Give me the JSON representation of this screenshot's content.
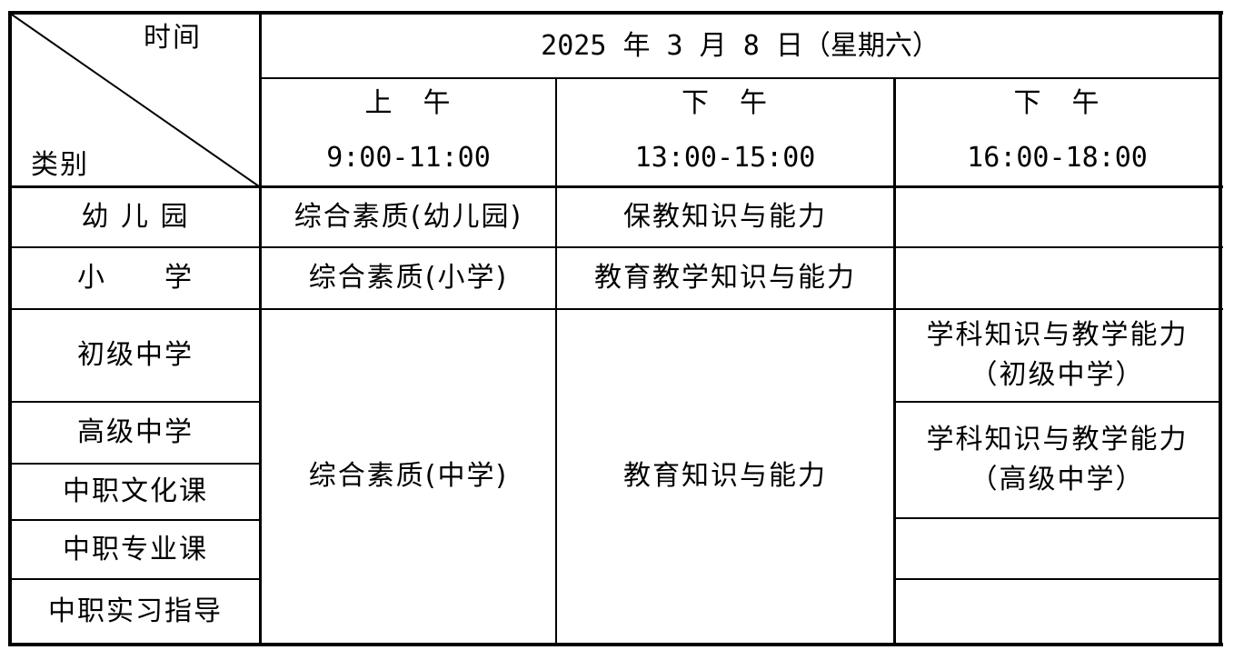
{
  "header": {
    "corner_time": "时间",
    "corner_category": "类别",
    "date": "2025 年 3 月 8 日（星期六）",
    "sessions": [
      {
        "label": "上　午",
        "time": "9:00-11:00"
      },
      {
        "label": "下　午",
        "time": "13:00-15:00"
      },
      {
        "label": "下　午",
        "time": "16:00-18:00"
      }
    ]
  },
  "rows": {
    "kindergarten": {
      "category": "幼 儿 园",
      "morning": "综合素质(幼儿园)",
      "afternoon": "保教知识与能力"
    },
    "primary": {
      "category": "小　　学",
      "morning": "综合素质(小学)",
      "afternoon": "教育教学知识与能力"
    },
    "junior": {
      "category": "初级中学",
      "evening": "学科知识与教学能力\n（初级中学）"
    },
    "senior": {
      "category": "高级中学",
      "evening": "学科知识与教学能力\n（高级中学）"
    },
    "voc_culture": {
      "category": "中职文化课"
    },
    "voc_major": {
      "category": "中职专业课"
    },
    "voc_intern": {
      "category": "中职实习指导"
    },
    "secondary_morning": "综合素质(中学)",
    "secondary_afternoon": "教育知识与能力"
  }
}
